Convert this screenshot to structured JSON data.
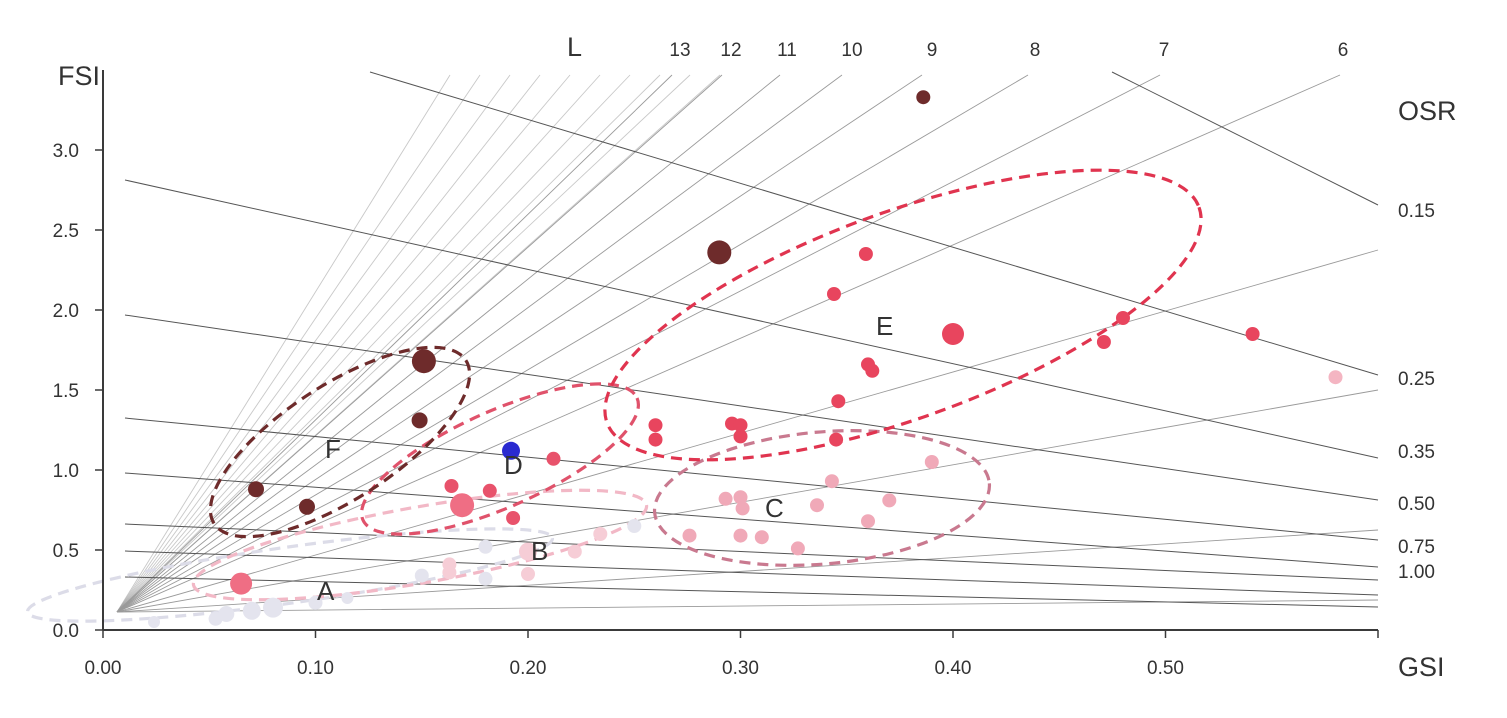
{
  "chart_data": {
    "type": "scatter",
    "xlabel": "GSI",
    "ylabel": "FSI",
    "xlim": [
      0,
      0.6
    ],
    "ylim": [
      0,
      3.5
    ],
    "x_ticks": [
      "0.00",
      "0.10",
      "0.20",
      "0.30",
      "0.40",
      "0.50"
    ],
    "y_ticks": [
      "0.0",
      "0.5",
      "1.0",
      "1.5",
      "2.0",
      "2.5",
      "3.0"
    ],
    "grid": false,
    "l_lines": {
      "title": "L",
      "labels": [
        "13",
        "12",
        "11",
        "10",
        "9",
        "8",
        "7",
        "6"
      ]
    },
    "osr_lines": {
      "title": "OSR",
      "labels": [
        "0.15",
        "0.25",
        "0.35",
        "0.50",
        "0.75",
        "1.00"
      ]
    },
    "regions": [
      {
        "label": "A",
        "color": "#dcdce8"
      },
      {
        "label": "B",
        "color": "#f2b8c6"
      },
      {
        "label": "C",
        "color": "#c9798f"
      },
      {
        "label": "D",
        "color": "#e0526b"
      },
      {
        "label": "E",
        "color": "#e0344f"
      },
      {
        "label": "F",
        "color": "#6e2b2b"
      }
    ],
    "points": [
      {
        "x": 0.386,
        "y": 3.33,
        "r": 7,
        "color": "#6e2b2b"
      },
      {
        "x": 0.29,
        "y": 2.36,
        "r": 12,
        "color": "#6e2b2b"
      },
      {
        "x": 0.151,
        "y": 1.68,
        "r": 12,
        "color": "#6e2b2b"
      },
      {
        "x": 0.149,
        "y": 1.31,
        "r": 8,
        "color": "#6e2b2b"
      },
      {
        "x": 0.072,
        "y": 0.88,
        "r": 8,
        "color": "#6e2b2b"
      },
      {
        "x": 0.096,
        "y": 0.77,
        "r": 8,
        "color": "#6e2b2b"
      },
      {
        "x": 0.192,
        "y": 1.12,
        "r": 9,
        "color": "#2a2ad0"
      },
      {
        "x": 0.359,
        "y": 2.35,
        "r": 7,
        "color": "#e8455e"
      },
      {
        "x": 0.344,
        "y": 2.1,
        "r": 7,
        "color": "#e8455e"
      },
      {
        "x": 0.4,
        "y": 1.85,
        "r": 11,
        "color": "#e8455e"
      },
      {
        "x": 0.36,
        "y": 1.66,
        "r": 7,
        "color": "#e8455e"
      },
      {
        "x": 0.362,
        "y": 1.62,
        "r": 7,
        "color": "#e8455e"
      },
      {
        "x": 0.346,
        "y": 1.43,
        "r": 7,
        "color": "#e8455e"
      },
      {
        "x": 0.48,
        "y": 1.95,
        "r": 7,
        "color": "#e8455e"
      },
      {
        "x": 0.471,
        "y": 1.8,
        "r": 7,
        "color": "#e8455e"
      },
      {
        "x": 0.541,
        "y": 1.85,
        "r": 7,
        "color": "#e8455e"
      },
      {
        "x": 0.26,
        "y": 1.28,
        "r": 7,
        "color": "#e8455e"
      },
      {
        "x": 0.26,
        "y": 1.19,
        "r": 7,
        "color": "#e8455e"
      },
      {
        "x": 0.296,
        "y": 1.29,
        "r": 7,
        "color": "#e8455e"
      },
      {
        "x": 0.3,
        "y": 1.28,
        "r": 7,
        "color": "#e8455e"
      },
      {
        "x": 0.3,
        "y": 1.21,
        "r": 7,
        "color": "#e8455e"
      },
      {
        "x": 0.345,
        "y": 1.19,
        "r": 7,
        "color": "#e8455e"
      },
      {
        "x": 0.212,
        "y": 1.07,
        "r": 7,
        "color": "#e8526b"
      },
      {
        "x": 0.164,
        "y": 0.9,
        "r": 7,
        "color": "#e8526b"
      },
      {
        "x": 0.182,
        "y": 0.87,
        "r": 7,
        "color": "#e8526b"
      },
      {
        "x": 0.169,
        "y": 0.78,
        "r": 12,
        "color": "#ef6e84"
      },
      {
        "x": 0.193,
        "y": 0.7,
        "r": 7,
        "color": "#e8526b"
      },
      {
        "x": 0.58,
        "y": 1.58,
        "r": 7,
        "color": "#f4b5c2"
      },
      {
        "x": 0.39,
        "y": 1.05,
        "r": 7,
        "color": "#f0a9b8"
      },
      {
        "x": 0.343,
        "y": 0.93,
        "r": 7,
        "color": "#f0a9b8"
      },
      {
        "x": 0.37,
        "y": 0.81,
        "r": 7,
        "color": "#f0a9b8"
      },
      {
        "x": 0.293,
        "y": 0.82,
        "r": 7,
        "color": "#f0a9b8"
      },
      {
        "x": 0.3,
        "y": 0.83,
        "r": 7,
        "color": "#f0a9b8"
      },
      {
        "x": 0.301,
        "y": 0.76,
        "r": 7,
        "color": "#f0a9b8"
      },
      {
        "x": 0.336,
        "y": 0.78,
        "r": 7,
        "color": "#f0a9b8"
      },
      {
        "x": 0.36,
        "y": 0.68,
        "r": 7,
        "color": "#f0a9b8"
      },
      {
        "x": 0.276,
        "y": 0.59,
        "r": 7,
        "color": "#f0a9b8"
      },
      {
        "x": 0.3,
        "y": 0.59,
        "r": 7,
        "color": "#f0a9b8"
      },
      {
        "x": 0.31,
        "y": 0.58,
        "r": 7,
        "color": "#f0a9b8"
      },
      {
        "x": 0.327,
        "y": 0.51,
        "r": 7,
        "color": "#f0a9b8"
      },
      {
        "x": 0.234,
        "y": 0.6,
        "r": 7,
        "color": "#f6cdd6"
      },
      {
        "x": 0.222,
        "y": 0.49,
        "r": 7,
        "color": "#f6cdd6"
      },
      {
        "x": 0.2,
        "y": 0.49,
        "r": 9,
        "color": "#f6cdd6"
      },
      {
        "x": 0.2,
        "y": 0.35,
        "r": 7,
        "color": "#f6cdd6"
      },
      {
        "x": 0.163,
        "y": 0.41,
        "r": 7,
        "color": "#f6cdd6"
      },
      {
        "x": 0.163,
        "y": 0.36,
        "r": 7,
        "color": "#f6cdd6"
      },
      {
        "x": 0.25,
        "y": 0.65,
        "r": 7,
        "color": "#e4e4ee"
      },
      {
        "x": 0.18,
        "y": 0.52,
        "r": 7,
        "color": "#e4e4ee"
      },
      {
        "x": 0.15,
        "y": 0.34,
        "r": 7,
        "color": "#e4e4ee"
      },
      {
        "x": 0.18,
        "y": 0.32,
        "r": 7,
        "color": "#e4e4ee"
      },
      {
        "x": 0.065,
        "y": 0.29,
        "r": 11,
        "color": "#ef6e84"
      },
      {
        "x": 0.08,
        "y": 0.14,
        "r": 10,
        "color": "#e4e4ee"
      },
      {
        "x": 0.07,
        "y": 0.12,
        "r": 9,
        "color": "#e4e4ee"
      },
      {
        "x": 0.058,
        "y": 0.1,
        "r": 8,
        "color": "#e4e4ee"
      },
      {
        "x": 0.053,
        "y": 0.07,
        "r": 7,
        "color": "#e4e4ee"
      },
      {
        "x": 0.1,
        "y": 0.17,
        "r": 7,
        "color": "#e4e4ee"
      },
      {
        "x": 0.115,
        "y": 0.2,
        "r": 6,
        "color": "#e4e4ee"
      },
      {
        "x": 0.024,
        "y": 0.05,
        "r": 6,
        "color": "#e4e4ee"
      }
    ]
  }
}
